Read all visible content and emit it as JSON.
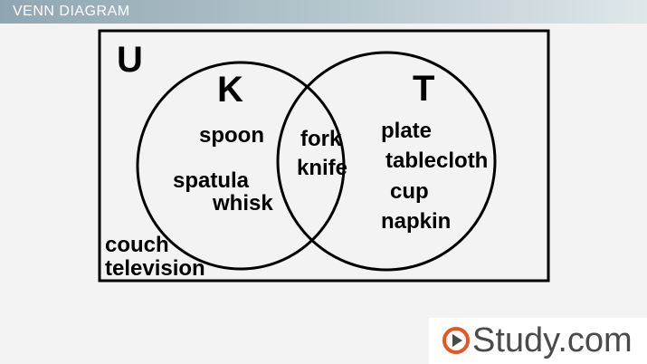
{
  "header": {
    "title": "VENN DIAGRAM"
  },
  "venn": {
    "universe_label": "U",
    "set_left": {
      "label": "K",
      "items": [
        "spoon",
        "spatula",
        "whisk"
      ]
    },
    "intersection": {
      "items": [
        "fork",
        "knife"
      ]
    },
    "set_right": {
      "label": "T",
      "items": [
        "plate",
        "tablecloth",
        "cup",
        "napkin"
      ]
    },
    "outside": {
      "items": [
        "couch",
        "television"
      ]
    }
  },
  "brand": {
    "name": "Study",
    "tld": ".com",
    "color": "#e8561f"
  }
}
